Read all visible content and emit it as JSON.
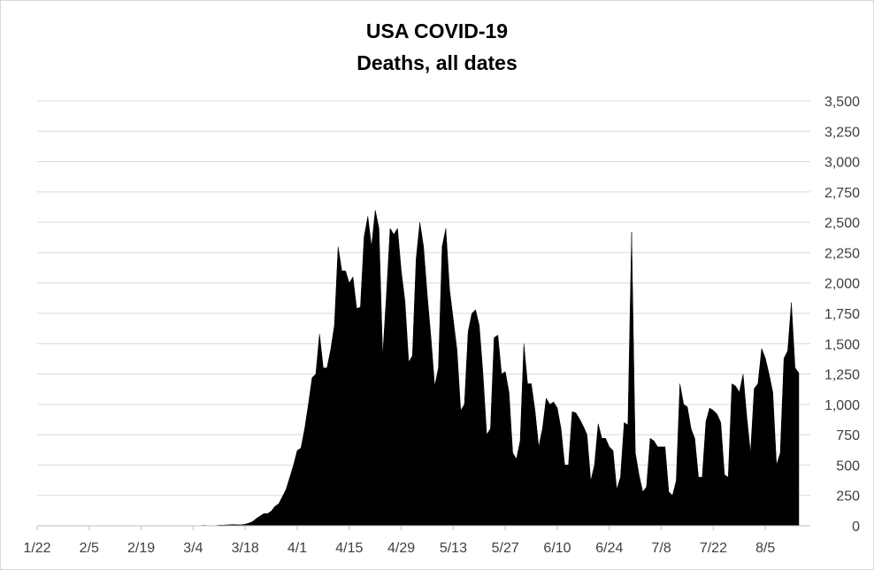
{
  "chart_data": {
    "type": "area",
    "title": "USA COVID-19",
    "subtitle": "Deaths, all dates",
    "y_axis_position": "right",
    "ylim": [
      0,
      3500
    ],
    "y_ticks": [
      0,
      250,
      500,
      750,
      1000,
      1250,
      1500,
      1750,
      2000,
      2250,
      2500,
      2750,
      3000,
      3250,
      3500
    ],
    "y_tick_labels": [
      "0",
      "250",
      "500",
      "750",
      "1,000",
      "1,250",
      "1,500",
      "1,750",
      "2,000",
      "2,250",
      "2,500",
      "2,750",
      "3,000",
      "3,250",
      "3,500"
    ],
    "x_tick_labels": [
      "1/22",
      "2/5",
      "2/19",
      "3/4",
      "3/18",
      "4/1",
      "4/15",
      "4/29",
      "5/13",
      "5/27",
      "6/10",
      "6/24",
      "7/8",
      "7/22",
      "8/5"
    ],
    "grid": true,
    "legend": "none",
    "fill_color": "#000000",
    "series": [
      {
        "x_start": "1/22",
        "x_step": "1 day",
        "values": [
          0,
          0,
          0,
          0,
          0,
          0,
          0,
          0,
          0,
          0,
          0,
          0,
          0,
          0,
          0,
          0,
          0,
          0,
          0,
          0,
          0,
          0,
          0,
          0,
          0,
          0,
          0,
          0,
          0,
          0,
          0,
          0,
          0,
          0,
          0,
          0,
          0,
          0,
          0,
          0,
          0,
          0,
          1,
          2,
          1,
          4,
          1,
          2,
          2,
          5,
          5,
          7,
          9,
          10,
          8,
          8,
          13,
          22,
          35,
          60,
          80,
          100,
          100,
          120,
          160,
          180,
          240,
          300,
          400,
          500,
          620,
          640,
          800,
          1000,
          1220,
          1250,
          1580,
          1300,
          1300,
          1450,
          1650,
          2300,
          2100,
          2100,
          2000,
          2050,
          1790,
          1800,
          2380,
          2550,
          2300,
          2600,
          2450,
          1400,
          1900,
          2450,
          2400,
          2450,
          2100,
          1850,
          1350,
          1400,
          2200,
          2500,
          2300,
          1900,
          1550,
          1150,
          1300,
          2300,
          2450,
          1950,
          1700,
          1450,
          950,
          1000,
          1600,
          1750,
          1780,
          1650,
          1250,
          750,
          800,
          1550,
          1570,
          1250,
          1270,
          1100,
          600,
          550,
          700,
          1500,
          1170,
          1170,
          950,
          650,
          800,
          1050,
          1000,
          1020,
          970,
          800,
          500,
          500,
          940,
          930,
          880,
          820,
          750,
          370,
          500,
          840,
          720,
          720,
          650,
          620,
          300,
          400,
          850,
          830,
          2420,
          600,
          420,
          280,
          320,
          720,
          700,
          650,
          650,
          650,
          280,
          250,
          370,
          1170,
          1000,
          980,
          800,
          720,
          400,
          400,
          860,
          970,
          950,
          920,
          850,
          420,
          400,
          1170,
          1150,
          1100,
          1250,
          900,
          600,
          1130,
          1170,
          1460,
          1380,
          1250,
          1100,
          500,
          600,
          1380,
          1440,
          1840,
          1300,
          1260
        ]
      }
    ]
  }
}
